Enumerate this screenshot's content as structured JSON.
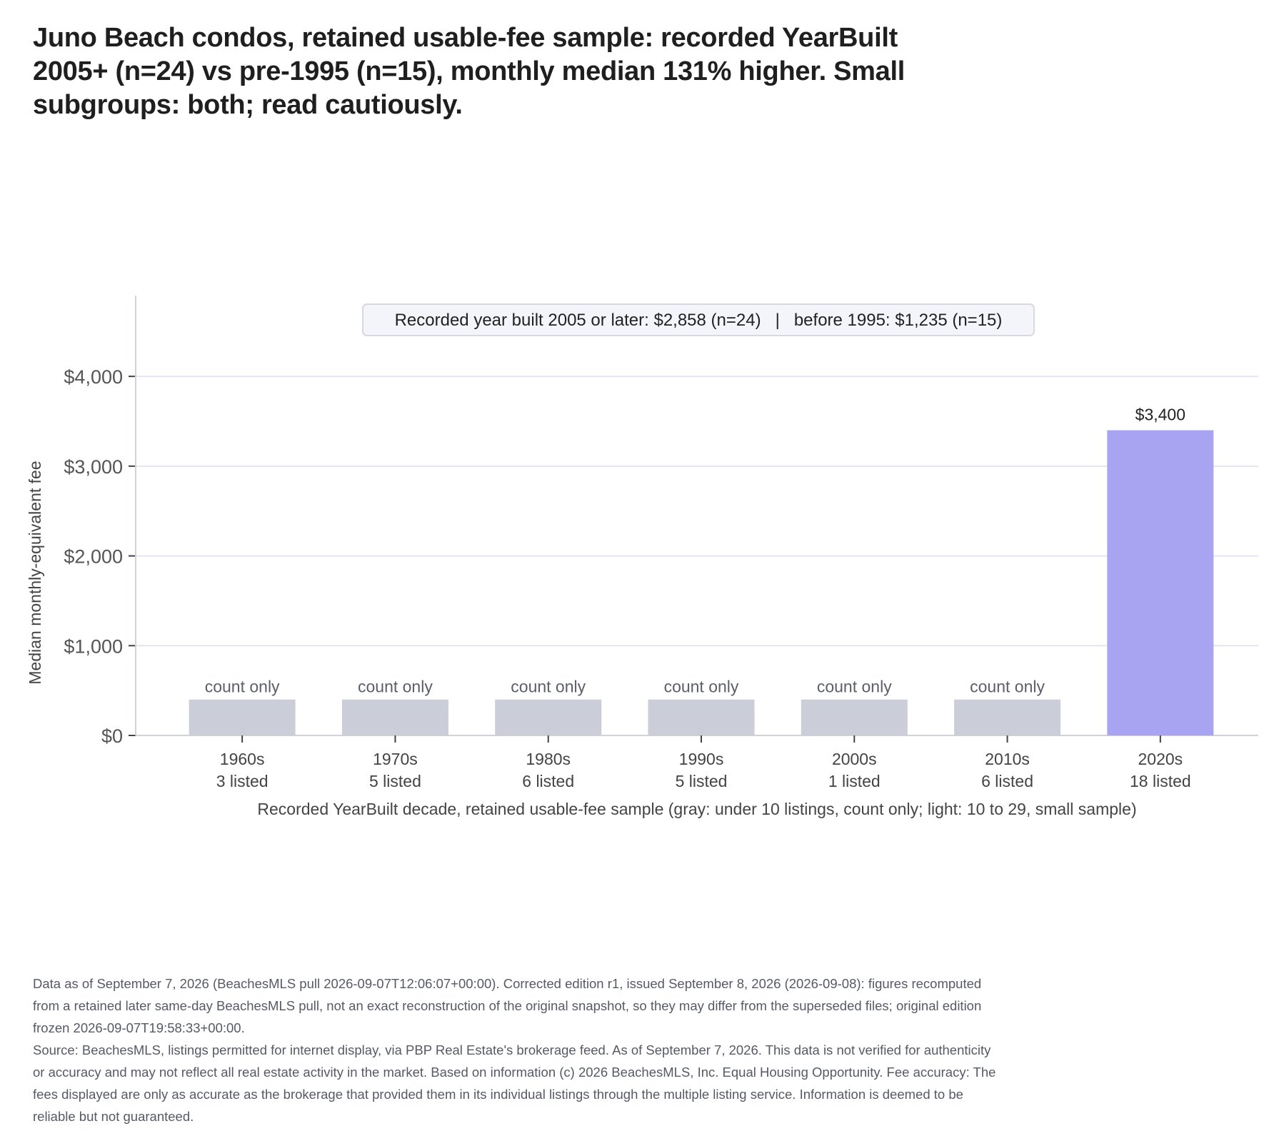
{
  "title": "Juno Beach condos, retained usable-fee sample: recorded YearBuilt 2005+ (n=24) vs pre-1995 (n=15), monthly median 131% higher. Small subgroups: both; read cautiously.",
  "chart_data": {
    "type": "bar",
    "xlabel": "Recorded YearBuilt decade, retained usable-fee sample (gray: under 10 listings, count only; light: 10 to 29, small sample)",
    "ylabel": "Median monthly-equivalent fee",
    "ylim": [
      0,
      4900
    ],
    "yticks": [
      0,
      1000,
      2000,
      3000,
      4000
    ],
    "ytick_labels": [
      "$0",
      "$1,000",
      "$2,000",
      "$3,000",
      "$4,000"
    ],
    "grid": true,
    "summary_box": "Recorded year built 2005 or later: $2,858 (n=24)   |   before 1995: $1,235 (n=15)",
    "categories": [
      "1960s",
      "1970s",
      "1980s",
      "1990s",
      "2000s",
      "2010s",
      "2020s"
    ],
    "counts": [
      "3 listed",
      "5 listed",
      "6 listed",
      "5 listed",
      "1 listed",
      "6 listed",
      "18 listed"
    ],
    "values": [
      null,
      null,
      null,
      null,
      null,
      null,
      3400
    ],
    "count_only_placeholder": 400,
    "bar_labels": [
      "count only",
      "count only",
      "count only",
      "count only",
      "count only",
      "count only",
      "$3,400"
    ],
    "colors": {
      "count_only": "#cbced9",
      "value": "#a8a4f2",
      "grid": "#e3e5f2",
      "axis": "#d0d2dc",
      "count_only_text": "#5b5f6b",
      "value_text": "#222222"
    }
  },
  "footer": {
    "edition_note": "Data as of September 7, 2026 (BeachesMLS pull 2026-09-07T12:06:07+00:00). Corrected edition r1, issued September 8, 2026 (2026-09-08): figures recomputed from a retained later same-day BeachesMLS pull, not an exact reconstruction of the original snapshot, so they may differ from the superseded files; original edition frozen 2026-09-07T19:58:33+00:00.",
    "source_note": "Source: BeachesMLS, listings permitted for internet display, via PBP Real Estate's brokerage feed. As of September 7, 2026. This data is not verified for authenticity or accuracy and may not reflect all real estate activity in the market. Based on information (c) 2026 BeachesMLS, Inc. Equal Housing Opportunity. Fee accuracy: The fees displayed are only as accurate as the brokerage that provided them in its individual listings through the multiple listing service. Information is deemed to be reliable but not guaranteed."
  }
}
